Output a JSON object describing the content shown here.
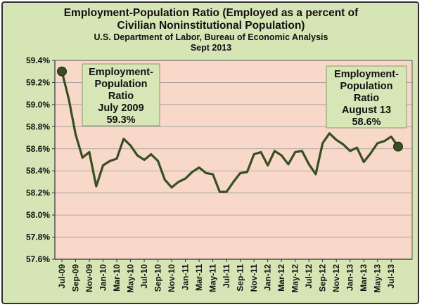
{
  "colors": {
    "background": "#d6e5b6",
    "plot_area": "#f8d8c8",
    "line": "#374e22",
    "callout_box": "#d7e6b6"
  },
  "header": {
    "title_line1": "Employment-Population Ratio (Employed as a percent of",
    "title_line2": "Civilian Noninstitutional Population)",
    "subtitle1": "U.S. Department  of Labor, Bureau of Economic Analysis",
    "subtitle2": "Sept 2013"
  },
  "callouts": {
    "start": [
      "Employment-",
      "Population",
      "Ratio",
      "July 2009",
      "59.3%"
    ],
    "end": [
      "Employment-",
      "Population",
      "Ratio",
      "August 13",
      "58.6%"
    ]
  },
  "chart_data": {
    "type": "line",
    "ylim": [
      57.6,
      59.4
    ],
    "yticks": [
      "57.6%",
      "57.8%",
      "58.0%",
      "58.2%",
      "58.4%",
      "58.6%",
      "58.8%",
      "59.0%",
      "59.2%",
      "59.4%"
    ],
    "x": [
      "Jul-09",
      "Aug-09",
      "Sep-09",
      "Oct-09",
      "Nov-09",
      "Dec-09",
      "Jan-10",
      "Feb-10",
      "Mar-10",
      "Apr-10",
      "May-10",
      "Jun-10",
      "Jul-10",
      "Aug-10",
      "Sep-10",
      "Oct-10",
      "Nov-10",
      "Dec-10",
      "Jan-11",
      "Feb-11",
      "Mar-11",
      "Apr-11",
      "May-11",
      "Jun-11",
      "Jul-11",
      "Aug-11",
      "Sep-11",
      "Oct-11",
      "Nov-11",
      "Dec-11",
      "Jan-12",
      "Feb-12",
      "Mar-12",
      "Apr-12",
      "May-12",
      "Jun-12",
      "Jul-12",
      "Aug-12",
      "Sep-12",
      "Oct-12",
      "Nov-12",
      "Dec-12",
      "Jan-13",
      "Feb-13",
      "Mar-13",
      "Apr-13",
      "May-13",
      "Jun-13",
      "Jul-13",
      "Aug-13"
    ],
    "xtick_labels": [
      "Jul-09",
      "Sep-09",
      "Nov-09",
      "Jan-10",
      "Mar-10",
      "May-10",
      "Jul-10",
      "Sep-10",
      "Nov-10",
      "Jan-11",
      "Mar-11",
      "May-11",
      "Jul-11",
      "Sep-11",
      "Nov-11",
      "Jan-12",
      "Mar-12",
      "May-12",
      "Jul-12",
      "Sep-12",
      "Nov-12",
      "Jan-13",
      "Mar-13",
      "May-13",
      "Jul-13"
    ],
    "series": [
      {
        "values": [
          59.3,
          59.05,
          58.73,
          58.52,
          58.57,
          58.26,
          58.45,
          58.49,
          58.51,
          58.69,
          58.63,
          58.54,
          58.5,
          58.55,
          58.49,
          58.32,
          58.25,
          58.3,
          58.33,
          58.39,
          58.43,
          58.38,
          58.37,
          58.21,
          58.21,
          58.3,
          58.38,
          58.39,
          58.55,
          58.57,
          58.45,
          58.58,
          58.54,
          58.46,
          58.57,
          58.58,
          58.46,
          58.37,
          58.65,
          58.74,
          58.68,
          58.64,
          58.58,
          58.61,
          58.48,
          58.56,
          58.65,
          58.67,
          58.71,
          58.62
        ]
      }
    ]
  }
}
